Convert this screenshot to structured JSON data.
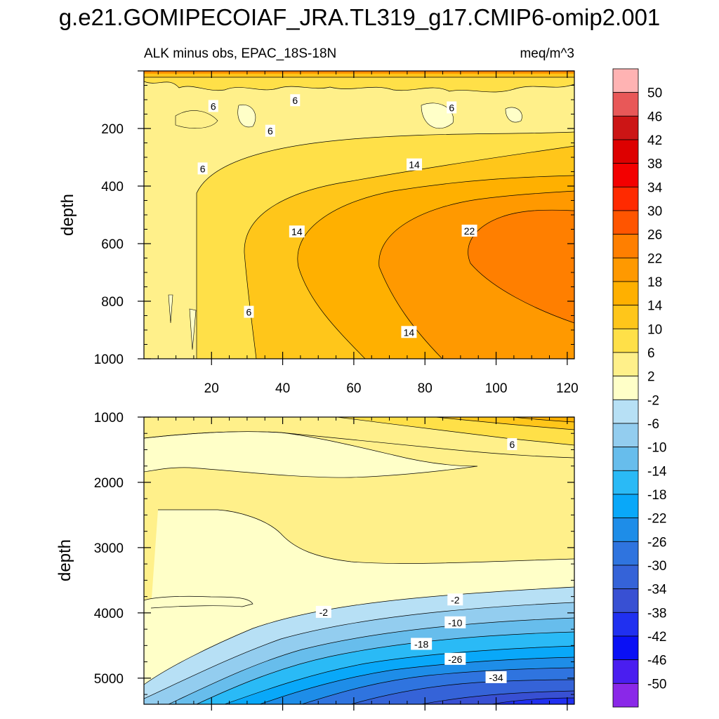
{
  "chart_data": {
    "type": "contour",
    "title": "g.e21.GOMIPECOIAF_JRA.TL319_g17.CMIP6-omip2.001",
    "subtitle_left": "ALK minus obs, EPAC_18S-18N",
    "subtitle_right": "meq/m^3",
    "colorbar": {
      "levels": [
        "50",
        "46",
        "42",
        "38",
        "34",
        "30",
        "26",
        "22",
        "18",
        "14",
        "10",
        "6",
        "2",
        "-2",
        "-6",
        "-10",
        "-14",
        "-18",
        "-22",
        "-26",
        "-30",
        "-34",
        "-38",
        "-42",
        "-46",
        "-50"
      ],
      "colors": [
        "#ffb3b3",
        "#e85858",
        "#cc1515",
        "#dd0000",
        "#f30000",
        "#ff2a00",
        "#ff5500",
        "#ff7f00",
        "#ff9900",
        "#ffb000",
        "#ffc61a",
        "#ffe048",
        "#fff08a",
        "#ffffc8",
        "#b7e0f5",
        "#93cdef",
        "#67bdec",
        "#2abaf6",
        "#09a8f9",
        "#1e8de8",
        "#2f74df",
        "#3563d8",
        "#3850d3",
        "#2030f0",
        "#0a10f5",
        "#4a1ef0",
        "#8a28e8"
      ]
    },
    "panels": [
      {
        "name": "upper",
        "xlim": [
          1,
          122
        ],
        "ylim": [
          1000,
          0
        ],
        "ylabel": "depth",
        "xticks": [
          "20",
          "40",
          "60",
          "80",
          "100",
          "120"
        ],
        "yticks": [
          "200",
          "400",
          "600",
          "800",
          "1000"
        ],
        "contour_labels": [
          {
            "text": "6",
            "x": 20.5,
            "y": 123
          },
          {
            "text": "6",
            "x": 43.5,
            "y": 103
          },
          {
            "text": "6",
            "x": 87.5,
            "y": 128
          },
          {
            "text": "6",
            "x": 36.5,
            "y": 209
          },
          {
            "text": "6",
            "x": 17.5,
            "y": 340
          },
          {
            "text": "14",
            "x": 77,
            "y": 326
          },
          {
            "text": "14",
            "x": 44,
            "y": 559
          },
          {
            "text": "22",
            "x": 92.5,
            "y": 556
          },
          {
            "text": "6",
            "x": 30.5,
            "y": 838
          },
          {
            "text": "14",
            "x": 75.5,
            "y": 908
          }
        ]
      },
      {
        "name": "lower",
        "xlim": [
          1,
          122
        ],
        "ylim": [
          5400,
          1000
        ],
        "ylabel": "depth",
        "yticks": [
          "1000",
          "2000",
          "3000",
          "4000",
          "5000"
        ],
        "contour_labels": [
          {
            "text": "6",
            "x": 104.5,
            "y": 1420
          },
          {
            "text": "-2",
            "x": 51.5,
            "y": 3990
          },
          {
            "text": "-2",
            "x": 88.5,
            "y": 3800
          },
          {
            "text": "-10",
            "x": 88.5,
            "y": 4150
          },
          {
            "text": "-18",
            "x": 79,
            "y": 4480
          },
          {
            "text": "-26",
            "x": 88.5,
            "y": 4710
          },
          {
            "text": "-34",
            "x": 100,
            "y": 4990
          }
        ]
      }
    ]
  }
}
